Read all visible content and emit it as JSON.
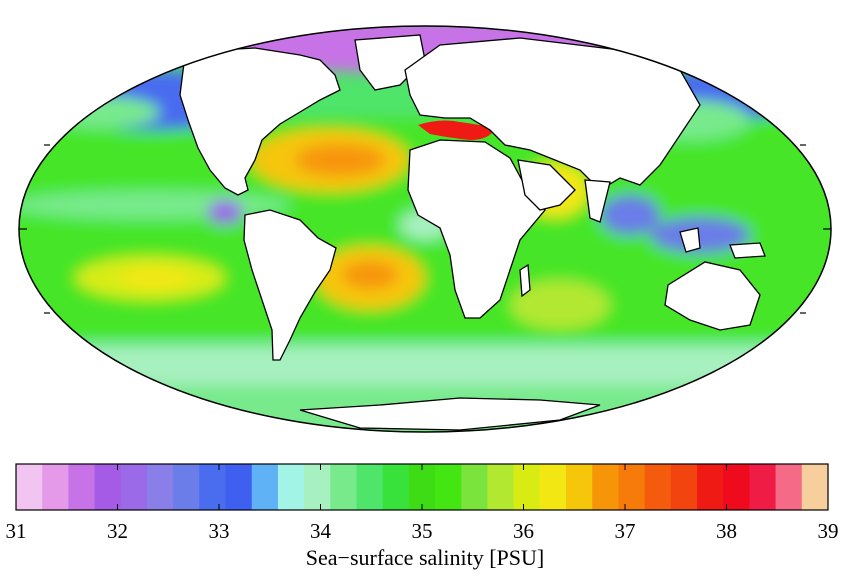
{
  "colorbar": {
    "title": "Sea−surface salinity [PSU]",
    "min": 31,
    "max": 39,
    "ticks": [
      "31",
      "32",
      "33",
      "34",
      "35",
      "36",
      "37",
      "38",
      "39"
    ],
    "colors": [
      "#f1c4f2",
      "#e49ae9",
      "#c772e6",
      "#a65be6",
      "#9a6ae8",
      "#8a7ee9",
      "#6a7de8",
      "#4a6cef",
      "#3f5ff0",
      "#5fb2f6",
      "#a2f5e6",
      "#a7f0bf",
      "#78ea8c",
      "#4fe46a",
      "#39e23b",
      "#3ddc14",
      "#44e611",
      "#7be43c",
      "#b2e830",
      "#d8ec14",
      "#f3e713",
      "#f6c60b",
      "#f79509",
      "#f77b0a",
      "#f55b0c",
      "#f2440e",
      "#ef1a13",
      "#ef0a1d",
      "#ef1c45",
      "#f56b87",
      "#f7cf9c"
    ]
  }
}
